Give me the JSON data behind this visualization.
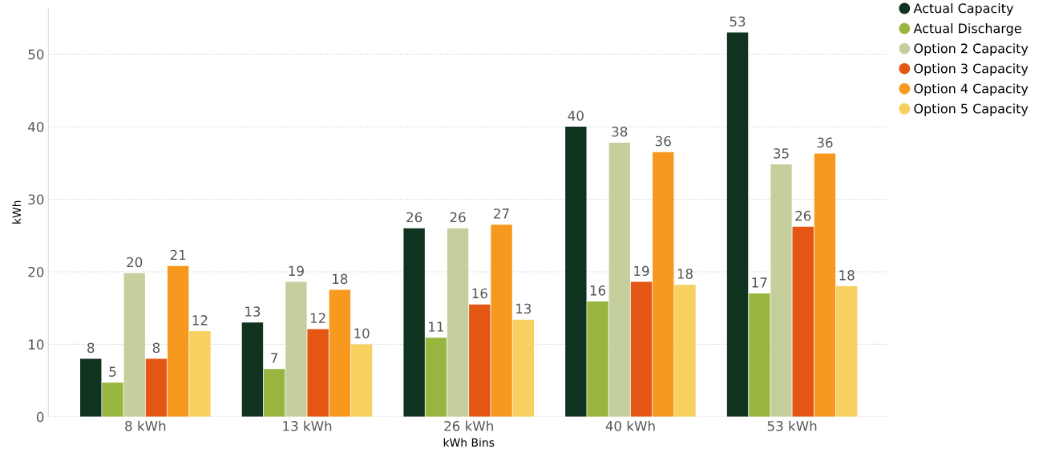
{
  "chart_data": {
    "type": "bar",
    "xlabel": "kWh Bins",
    "ylabel": "kWh",
    "categories": [
      "8 kWh",
      "13 kWh",
      "26 kWh",
      "40 kWh",
      "53 kWh"
    ],
    "series": [
      {
        "name": "Actual Capacity",
        "color": "#10331f",
        "values": [
          8.0,
          13.0,
          26.0,
          40.0,
          53.0
        ],
        "value_labels": [
          "8",
          "13",
          "26",
          "40",
          "53"
        ]
      },
      {
        "name": "Actual Discharge",
        "color": "#98b540",
        "values": [
          4.7,
          6.6,
          10.9,
          15.9,
          17.0
        ],
        "value_labels": [
          "5",
          "7",
          "11",
          "16",
          "17"
        ]
      },
      {
        "name": "Option 2 Capacity",
        "color": "#c5cf9e",
        "values": [
          19.8,
          18.6,
          26.0,
          37.8,
          34.8
        ],
        "value_labels": [
          "20",
          "19",
          "26",
          "38",
          "35"
        ]
      },
      {
        "name": "Option 3 Capacity",
        "color": "#e35614",
        "values": [
          8.0,
          12.1,
          15.5,
          18.6,
          26.2
        ],
        "value_labels": [
          "8",
          "12",
          "16",
          "19",
          "26"
        ]
      },
      {
        "name": "Option 4 Capacity",
        "color": "#f7991f",
        "values": [
          20.8,
          17.5,
          26.5,
          36.5,
          36.3
        ],
        "value_labels": [
          "21",
          "18",
          "27",
          "36",
          "36"
        ]
      },
      {
        "name": "Option 5 Capacity",
        "color": "#f7d060",
        "values": [
          11.8,
          10.0,
          13.4,
          18.2,
          18.0
        ],
        "value_labels": [
          "12",
          "10",
          "13",
          "18",
          "18"
        ]
      }
    ],
    "ylim": [
      0,
      56.4
    ],
    "yticks": [
      0,
      10,
      20,
      30,
      40,
      50
    ],
    "grid": "y",
    "legend": "top right"
  }
}
